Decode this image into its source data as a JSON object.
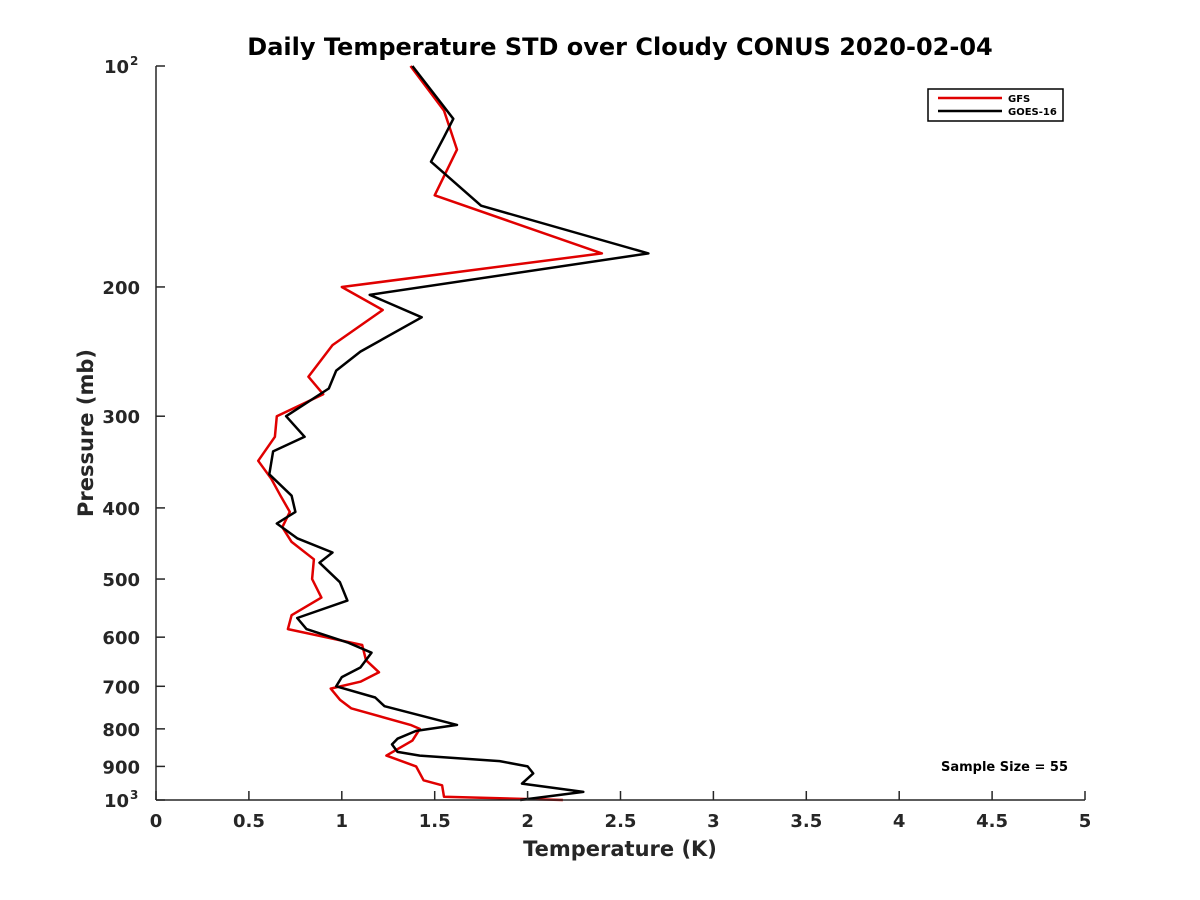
{
  "chart_data": {
    "type": "line",
    "title": "Daily Temperature STD over Cloudy CONUS 2020-02-04",
    "xlabel": "Temperature (K)",
    "ylabel": "Pressure (mb)",
    "xlim": [
      0,
      5
    ],
    "ylim": [
      100,
      1000
    ],
    "y_scale": "log",
    "y_reversed": true,
    "x_ticks": [
      "0",
      "0.5",
      "1",
      "1.5",
      "2",
      "2.5",
      "3",
      "3.5",
      "4",
      "4.5",
      "5"
    ],
    "y_ticks": [
      {
        "value": 100,
        "base": "10",
        "exp": "2"
      },
      {
        "value": 200,
        "label": "200"
      },
      {
        "value": 300,
        "label": "300"
      },
      {
        "value": 400,
        "label": "400"
      },
      {
        "value": 500,
        "label": "500"
      },
      {
        "value": 600,
        "label": "600"
      },
      {
        "value": 700,
        "label": "700"
      },
      {
        "value": 800,
        "label": "800"
      },
      {
        "value": 900,
        "label": "900"
      },
      {
        "value": 1000,
        "base": "10",
        "exp": "3"
      }
    ],
    "legend": {
      "placement": "top-right"
    },
    "annotation": "Sample Size = 55",
    "series": [
      {
        "name": "GFS",
        "color": "#e00000",
        "points": [
          [
            1.37,
            100
          ],
          [
            1.55,
            115
          ],
          [
            1.62,
            130
          ],
          [
            1.5,
            150
          ],
          [
            2.4,
            180
          ],
          [
            1.0,
            200
          ],
          [
            1.22,
            215
          ],
          [
            0.95,
            240
          ],
          [
            0.82,
            265
          ],
          [
            0.9,
            280
          ],
          [
            0.65,
            300
          ],
          [
            0.64,
            320
          ],
          [
            0.55,
            345
          ],
          [
            0.62,
            365
          ],
          [
            0.67,
            385
          ],
          [
            0.72,
            405
          ],
          [
            0.68,
            425
          ],
          [
            0.73,
            445
          ],
          [
            0.85,
            470
          ],
          [
            0.84,
            500
          ],
          [
            0.89,
            530
          ],
          [
            0.73,
            560
          ],
          [
            0.71,
            585
          ],
          [
            1.11,
            615
          ],
          [
            1.13,
            645
          ],
          [
            1.2,
            670
          ],
          [
            1.1,
            690
          ],
          [
            0.94,
            705
          ],
          [
            0.99,
            730
          ],
          [
            1.05,
            750
          ],
          [
            1.37,
            790
          ],
          [
            1.42,
            800
          ],
          [
            1.38,
            830
          ],
          [
            1.24,
            870
          ],
          [
            1.4,
            900
          ],
          [
            1.44,
            940
          ],
          [
            1.54,
            955
          ],
          [
            1.55,
            990
          ],
          [
            2.19,
            1000
          ]
        ]
      },
      {
        "name": "GOES-16",
        "color": "#000000",
        "points": [
          [
            1.38,
            100
          ],
          [
            1.6,
            118
          ],
          [
            1.55,
            125
          ],
          [
            1.48,
            135
          ],
          [
            1.75,
            155
          ],
          [
            2.65,
            180
          ],
          [
            1.15,
            205
          ],
          [
            1.43,
            220
          ],
          [
            1.1,
            245
          ],
          [
            0.97,
            260
          ],
          [
            0.93,
            275
          ],
          [
            0.7,
            300
          ],
          [
            0.8,
            320
          ],
          [
            0.63,
            335
          ],
          [
            0.61,
            360
          ],
          [
            0.73,
            385
          ],
          [
            0.75,
            405
          ],
          [
            0.65,
            420
          ],
          [
            0.76,
            440
          ],
          [
            0.95,
            460
          ],
          [
            0.88,
            475
          ],
          [
            0.99,
            505
          ],
          [
            1.03,
            535
          ],
          [
            0.76,
            565
          ],
          [
            0.81,
            585
          ],
          [
            1.03,
            610
          ],
          [
            1.16,
            630
          ],
          [
            1.1,
            660
          ],
          [
            1.0,
            680
          ],
          [
            0.97,
            700
          ],
          [
            1.18,
            725
          ],
          [
            1.23,
            745
          ],
          [
            1.62,
            790
          ],
          [
            1.4,
            805
          ],
          [
            1.3,
            825
          ],
          [
            1.27,
            840
          ],
          [
            1.3,
            860
          ],
          [
            1.42,
            870
          ],
          [
            1.85,
            885
          ],
          [
            2.0,
            900
          ],
          [
            2.03,
            920
          ],
          [
            1.97,
            950
          ],
          [
            2.3,
            975
          ],
          [
            1.96,
            1000
          ]
        ]
      }
    ]
  }
}
